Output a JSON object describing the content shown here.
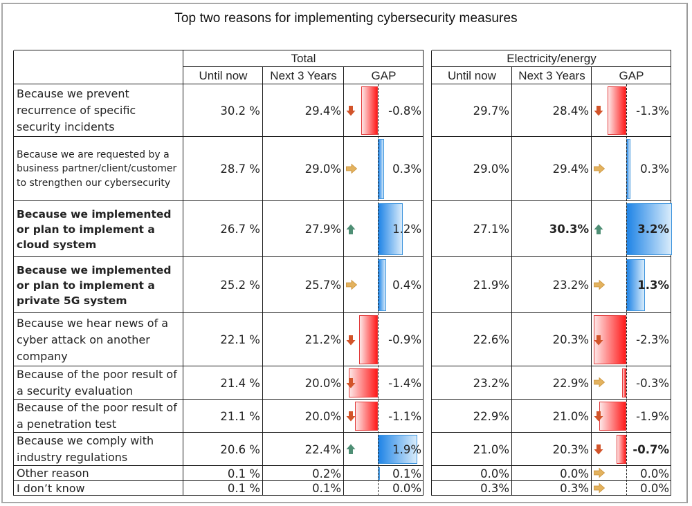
{
  "title": "Top two reasons for implementing cybersecurity measures",
  "colors": {
    "neg_bar": "#ff1a1a",
    "pos_bar": "#1f84e6",
    "arrow_down": "#d2542a",
    "arrow_up": "#4f8f75",
    "arrow_flat": "#e3b25e"
  },
  "chart_data": {
    "type": "table",
    "title": "Top two reasons for implementing cybersecurity measures",
    "groups": [
      {
        "name": "Total",
        "columns": [
          "Until now",
          "Next 3 Years",
          "GAP"
        ]
      },
      {
        "name": "Electricity/energy",
        "columns": [
          "Until now",
          "Next 3 Years",
          "GAP"
        ]
      }
    ],
    "rows": [
      {
        "label": "Because we prevent recurrence of specific security incidents",
        "style": "normal",
        "total": {
          "until_now": "30.2 %",
          "next3": "29.4%",
          "gap": -0.8,
          "gap_label": "-0.8%",
          "arrow": "down"
        },
        "energy": {
          "until_now": "29.7%",
          "next3": "28.4%",
          "gap": -1.3,
          "gap_label": "-1.3%",
          "arrow": "down"
        }
      },
      {
        "label": "Because we are requested by a business partner/client/customer to strengthen our cybersecurity",
        "style": "small",
        "total": {
          "until_now": "28.7 %",
          "next3": "29.0%",
          "gap": 0.3,
          "gap_label": "0.3%",
          "arrow": "flat"
        },
        "energy": {
          "until_now": "29.0%",
          "next3": "29.4%",
          "gap": 0.3,
          "gap_label": "0.3%",
          "arrow": "flat"
        }
      },
      {
        "label": "Because we implemented or plan to implement a cloud system",
        "style": "bold",
        "total": {
          "until_now": "26.7 %",
          "next3": "27.9%",
          "gap": 1.2,
          "gap_label": "1.2%",
          "arrow": "up"
        },
        "energy": {
          "until_now": "27.1%",
          "next3": "30.3%",
          "next3_bold": true,
          "gap": 3.2,
          "gap_label": "3.2%",
          "gap_bold": true,
          "arrow": "up"
        }
      },
      {
        "label": "Because we implemented or plan to implement a private 5G system",
        "style": "bold",
        "total": {
          "until_now": "25.2 %",
          "next3": "25.7%",
          "gap": 0.4,
          "gap_label": "0.4%",
          "arrow": "flat"
        },
        "energy": {
          "until_now": "21.9%",
          "next3": "23.2%",
          "gap": 1.3,
          "gap_label": "1.3%",
          "gap_bold": true,
          "arrow": "flat"
        }
      },
      {
        "label": "Because we hear news of a cyber attack on another company",
        "style": "normal",
        "total": {
          "until_now": "22.1 %",
          "next3": "21.2%",
          "gap": -0.9,
          "gap_label": "-0.9%",
          "arrow": "down"
        },
        "energy": {
          "until_now": "22.6%",
          "next3": "20.3%",
          "gap": -2.3,
          "gap_label": "-2.3%",
          "arrow": "down"
        }
      },
      {
        "label": "Because of the poor result of a security evaluation",
        "style": "normal",
        "total": {
          "until_now": "21.4 %",
          "next3": "20.0%",
          "gap": -1.4,
          "gap_label": "-1.4%",
          "arrow": "down"
        },
        "energy": {
          "until_now": "23.2%",
          "next3": "22.9%",
          "gap": -0.3,
          "gap_label": "-0.3%",
          "arrow": "flat"
        }
      },
      {
        "label": "Because of the poor result of a penetration test",
        "style": "normal",
        "total": {
          "until_now": "21.1 %",
          "next3": "20.0%",
          "gap": -1.1,
          "gap_label": "-1.1%",
          "arrow": "down"
        },
        "energy": {
          "until_now": "22.9%",
          "next3": "21.0%",
          "gap": -1.9,
          "gap_label": "-1.9%",
          "arrow": "down"
        }
      },
      {
        "label": "Because we comply with industry regulations",
        "style": "normal",
        "total": {
          "until_now": "20.6 %",
          "next3": "22.4%",
          "gap": 1.9,
          "gap_label": "1.9%",
          "arrow": "up"
        },
        "energy": {
          "until_now": "21.0%",
          "next3": "20.3%",
          "gap": -0.7,
          "gap_label": "-0.7%",
          "gap_bold": true,
          "arrow": "down"
        }
      },
      {
        "label": "Other reason",
        "style": "normal",
        "total": {
          "until_now": "0.1 %",
          "next3": "0.2%",
          "gap": 0.1,
          "gap_label": "0.1%",
          "arrow": "none"
        },
        "energy": {
          "until_now": "0.0%",
          "next3": "0.0%",
          "gap": 0.0,
          "gap_label": "0.0%",
          "arrow": "flat"
        }
      },
      {
        "label": "I don’t know",
        "style": "normal",
        "total": {
          "until_now": "0.1 %",
          "next3": "0.1%",
          "gap": 0.0,
          "gap_label": "0.0%",
          "arrow": "none"
        },
        "energy": {
          "until_now": "0.3%",
          "next3": "0.3%",
          "gap": 0.0,
          "gap_label": "0.0%",
          "arrow": "flat"
        }
      }
    ],
    "gap_scale": {
      "total_max_abs": 1.9,
      "energy_max_abs": 3.2
    }
  }
}
